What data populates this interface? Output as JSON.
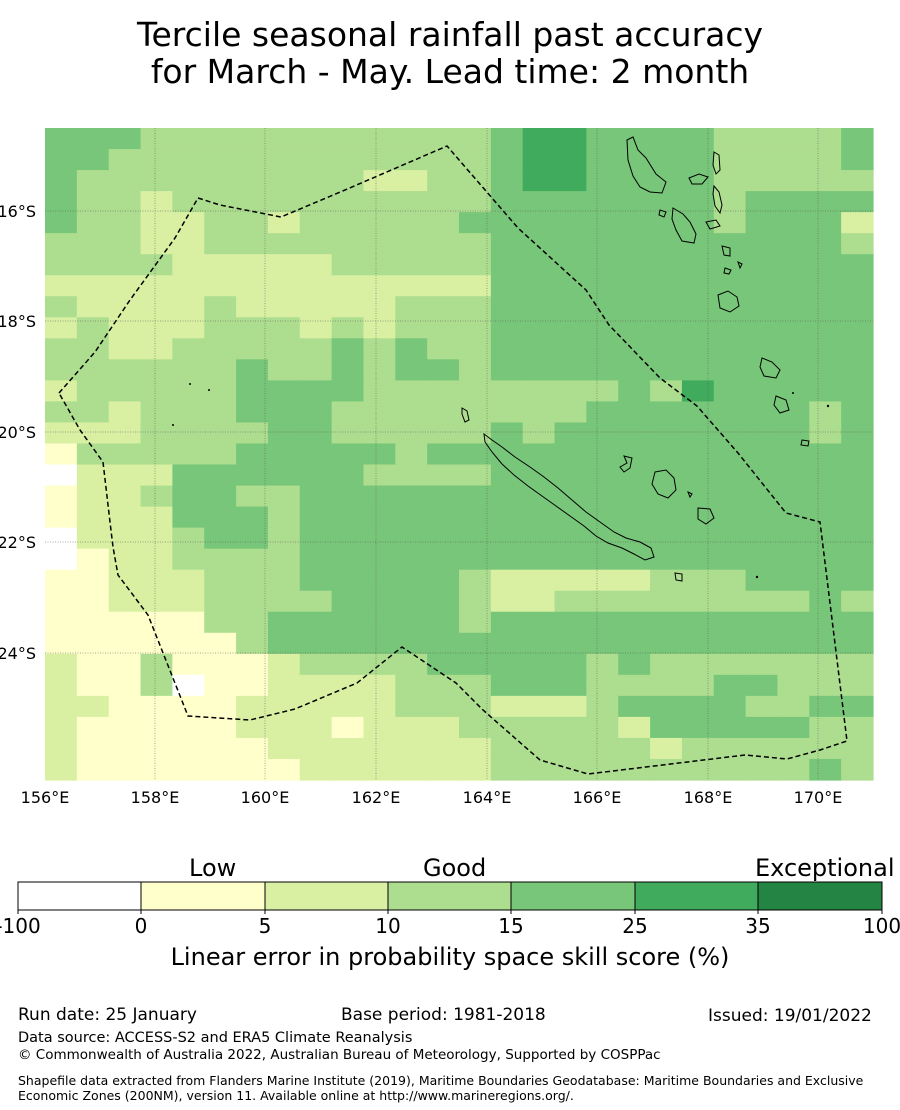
{
  "title": {
    "line1": "Tercile seasonal rainfall past accuracy",
    "line2": "for March - May. Lead time: 2 month"
  },
  "map": {
    "lon_ticks": [
      "156°E",
      "158°E",
      "160°E",
      "162°E",
      "164°E",
      "166°E",
      "168°E",
      "170°E"
    ],
    "lat_ticks": [
      "16°S",
      "18°S",
      "20°S",
      "22°S",
      "24°S"
    ],
    "palette": [
      "#ffffff",
      "#ffffcc",
      "#d9f0a3",
      "#addd8e",
      "#78c679",
      "#41ab5d",
      "#238443"
    ],
    "grid_rows": [
      "44433333333333455444433334",
      "44333333333333455444433334",
      "43333333332233455444433333",
      "43323333333333444444434444",
      "43322332333334444444434442",
      "33322333333333444444444443",
      "33332222233333444444444444",
      "22222222222222444444444444",
      "32222322222333444444444444",
      "23222333232333444444444444",
      "33223333343433444444444444",
      "33333343343443444444444444",
      "23333344443333333343544444",
      "33233344433333333444444434",
      "22233334433333434444444434",
      "13333344444344444444444444",
      "02224444443333444444444444",
      "12234433444444444444444444",
      "12224443444444444444444444",
      "02223443444444444444444444",
      "01223333444444444444444444",
      "11222333444443222223334444",
      "11222333344443223333333343",
      "11111334444443444444444444",
      "11111134444444444444444444",
      "21131112333344444343333333",
      "21130112222333444333344333",
      "22111122222333222344443344",
      "21111122212223333324444433",
      "21111112222222333332333333",
      "21111111222222333333333343"
    ]
  },
  "colorbar": {
    "category_labels": [
      "Low",
      "Good",
      "Exceptional"
    ],
    "tick_labels": [
      "-100",
      "0",
      "5",
      "10",
      "15",
      "25",
      "35",
      "100"
    ],
    "xlabel": "Linear error in probability space skill score (%)"
  },
  "footer": {
    "run_date": "Run date: 25 January",
    "base_period": "Base period: 1981-2018",
    "issued": "Issued: 19/01/2022",
    "data_source": "Data source: ACCESS-S2 and ERA5 Climate Reanalysis",
    "copyright": "© Commonwealth of Australia 2022, Australian Bureau of Meteorology, Supported by COSPPac",
    "shapefile": "Shapefile data extracted from Flanders Marine Institute (2019), Maritime Boundaries Geodatabase: Maritime Boundaries and Exclusive Economic Zones (200NM), version 11. Available online at http://www.marineregions.org/."
  }
}
